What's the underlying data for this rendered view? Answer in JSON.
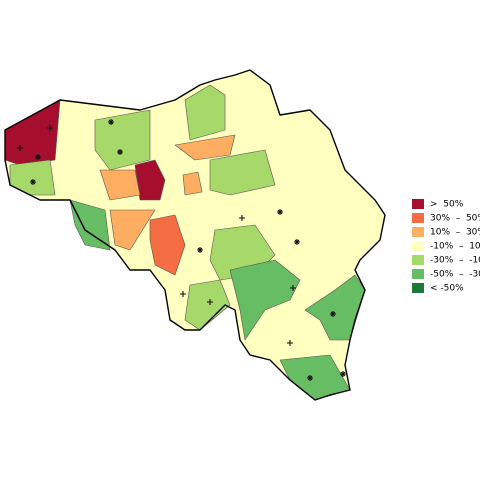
{
  "legend": {
    "items": [
      {
        "label": ">  50%",
        "color": "#a50f2d"
      },
      {
        "label": "30%  –  50%",
        "color": "#f46d43"
      },
      {
        "label": "10%  –  30%",
        "color": "#fdae61"
      },
      {
        "label": "-10%  –  10%",
        "color": "#ffffbf"
      },
      {
        "label": "-30%  –  -10%",
        "color": "#a6d96a"
      },
      {
        "label": "-50%  –  -30%",
        "color": "#66bd63"
      },
      {
        "label": "< -50%",
        "color": "#1a7a3a"
      }
    ]
  }
}
